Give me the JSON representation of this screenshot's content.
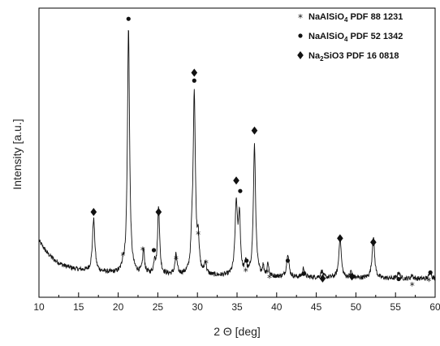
{
  "chart_data": {
    "type": "line",
    "xlabel": "2 Θ [deg]",
    "ylabel": "Intensity [a.u.]",
    "xlim": [
      10,
      60
    ],
    "x_ticks": [
      "10",
      "15",
      "20",
      "25",
      "30",
      "35",
      "40",
      "45",
      "50",
      "55",
      "60"
    ],
    "y_ticks_shown": false,
    "grid": false,
    "legend_position": "top-right",
    "legend": [
      {
        "marker": "*",
        "formula_main": "NaAlSiO",
        "formula_sub": "4",
        "formula_rest": "",
        "ref": "PDF 88 1231"
      },
      {
        "marker": "•",
        "formula_main": "NaAlSiO",
        "formula_sub": "4",
        "formula_rest": "",
        "ref": "PDF 52 1342"
      },
      {
        "marker": "♦",
        "formula_main": "Na",
        "formula_sub": "2",
        "formula_rest": "SiO3",
        "ref": "PDF 16 0818"
      }
    ],
    "baseline": [
      [
        10,
        0.215
      ],
      [
        11,
        0.17
      ],
      [
        12,
        0.14
      ],
      [
        13,
        0.122
      ],
      [
        14,
        0.112
      ],
      [
        15,
        0.105
      ],
      [
        17,
        0.097
      ],
      [
        20,
        0.09
      ],
      [
        25,
        0.085
      ],
      [
        30,
        0.082
      ],
      [
        35,
        0.079
      ],
      [
        40,
        0.077
      ],
      [
        45,
        0.075
      ],
      [
        50,
        0.073
      ],
      [
        55,
        0.071
      ],
      [
        60,
        0.07
      ]
    ],
    "peaks": [
      {
        "x": 16.9,
        "height": 0.2,
        "width": 0.18
      },
      {
        "x": 20.6,
        "height": 0.03,
        "width": 0.12
      },
      {
        "x": 21.3,
        "height": 0.935,
        "width": 0.16
      },
      {
        "x": 23.2,
        "height": 0.09,
        "width": 0.14
      },
      {
        "x": 24.6,
        "height": 0.05,
        "width": 0.12
      },
      {
        "x": 25.1,
        "height": 0.26,
        "width": 0.15
      },
      {
        "x": 27.3,
        "height": 0.075,
        "width": 0.15
      },
      {
        "x": 29.3,
        "height": 0.09,
        "width": 0.14
      },
      {
        "x": 29.6,
        "height": 0.685,
        "width": 0.17
      },
      {
        "x": 30.1,
        "height": 0.12,
        "width": 0.14
      },
      {
        "x": 31.0,
        "height": 0.045,
        "width": 0.14
      },
      {
        "x": 34.9,
        "height": 0.27,
        "width": 0.18
      },
      {
        "x": 35.3,
        "height": 0.215,
        "width": 0.15
      },
      {
        "x": 36.1,
        "height": 0.05,
        "width": 0.12
      },
      {
        "x": 37.2,
        "height": 0.495,
        "width": 0.17
      },
      {
        "x": 38.3,
        "height": 0.035,
        "width": 0.12
      },
      {
        "x": 38.9,
        "height": 0.05,
        "width": 0.12
      },
      {
        "x": 41.4,
        "height": 0.09,
        "width": 0.17
      },
      {
        "x": 43.4,
        "height": 0.035,
        "width": 0.15
      },
      {
        "x": 45.7,
        "height": 0.025,
        "width": 0.15
      },
      {
        "x": 48.0,
        "height": 0.16,
        "width": 0.17
      },
      {
        "x": 49.4,
        "height": 0.025,
        "width": 0.13
      },
      {
        "x": 52.2,
        "height": 0.16,
        "width": 0.18
      },
      {
        "x": 55.4,
        "height": 0.025,
        "width": 0.15
      },
      {
        "x": 57.1,
        "height": 0.015,
        "width": 0.12
      },
      {
        "x": 59.4,
        "height": 0.03,
        "width": 0.15
      }
    ],
    "noise_amplitude": 0.009,
    "annotations": [
      {
        "x": 16.9,
        "y": 0.315,
        "marker": "♦"
      },
      {
        "x": 20.6,
        "y": 0.155,
        "marker": "*"
      },
      {
        "x": 21.3,
        "y": 1.05,
        "marker": "•"
      },
      {
        "x": 23.1,
        "y": 0.175,
        "marker": "*"
      },
      {
        "x": 24.5,
        "y": 0.17,
        "marker": "•"
      },
      {
        "x": 25.1,
        "y": 0.315,
        "marker": "♦"
      },
      {
        "x": 27.3,
        "y": 0.14,
        "marker": "*"
      },
      {
        "x": 29.6,
        "y": 0.845,
        "marker": "♦"
      },
      {
        "x": 29.6,
        "y": 0.815,
        "marker": "•"
      },
      {
        "x": 30.1,
        "y": 0.235,
        "marker": "*"
      },
      {
        "x": 31.1,
        "y": 0.125,
        "marker": "*"
      },
      {
        "x": 34.9,
        "y": 0.435,
        "marker": "♦"
      },
      {
        "x": 35.4,
        "y": 0.395,
        "marker": "•"
      },
      {
        "x": 36.2,
        "y": 0.13,
        "marker": "•"
      },
      {
        "x": 36.1,
        "y": 0.095,
        "marker": "*"
      },
      {
        "x": 37.2,
        "y": 0.625,
        "marker": "♦"
      },
      {
        "x": 38.8,
        "y": 0.09,
        "marker": "*"
      },
      {
        "x": 39.1,
        "y": 0.07,
        "marker": "*"
      },
      {
        "x": 41.4,
        "y": 0.13,
        "marker": "•"
      },
      {
        "x": 43.4,
        "y": 0.08,
        "marker": "•"
      },
      {
        "x": 45.8,
        "y": 0.062,
        "marker": "♦"
      },
      {
        "x": 48.0,
        "y": 0.215,
        "marker": "♦"
      },
      {
        "x": 49.5,
        "y": 0.07,
        "marker": "♦"
      },
      {
        "x": 52.2,
        "y": 0.2,
        "marker": "♦"
      },
      {
        "x": 55.4,
        "y": 0.06,
        "marker": "•"
      },
      {
        "x": 57.1,
        "y": 0.04,
        "marker": "*"
      },
      {
        "x": 59.4,
        "y": 0.085,
        "marker": "•"
      },
      {
        "x": 59.2,
        "y": 0.057,
        "marker": "*"
      }
    ]
  }
}
